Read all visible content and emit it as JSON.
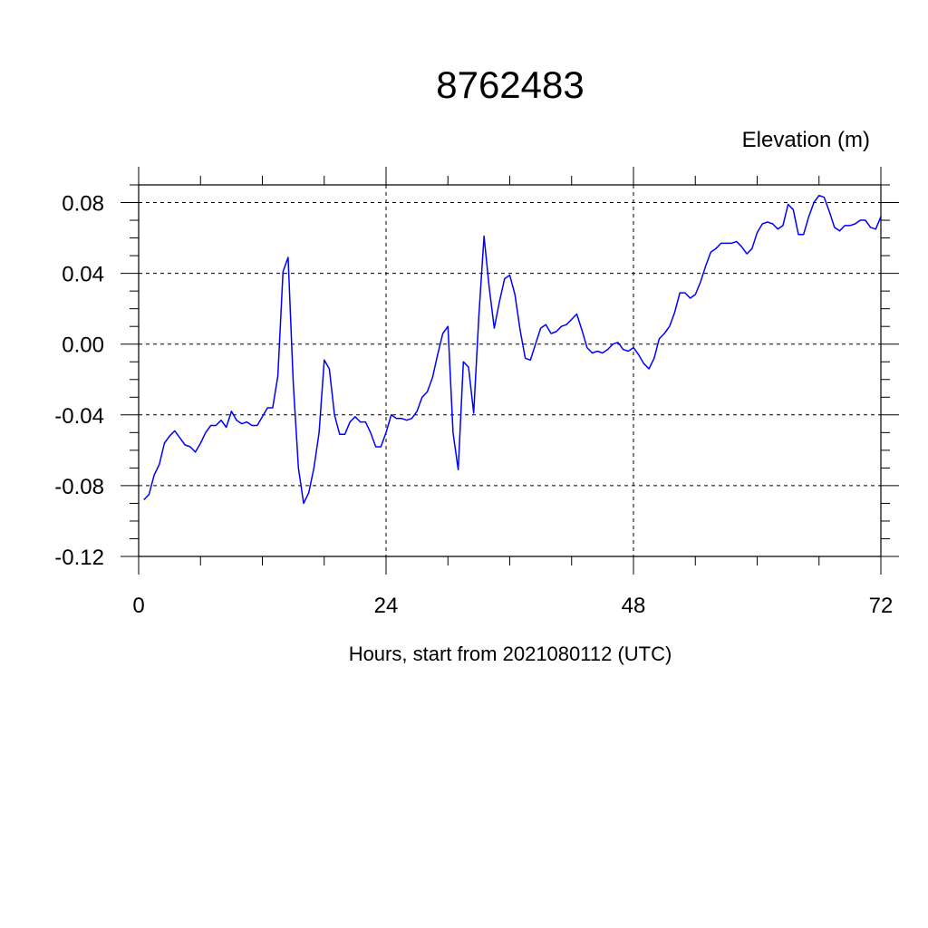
{
  "chart_data": {
    "type": "line",
    "title": "8762483",
    "ylabel": "Elevation (m)",
    "xlabel": "Hours, start from 2021080112 (UTC)",
    "xlim": [
      0,
      72
    ],
    "ylim": [
      -0.12,
      0.09
    ],
    "xticks": [
      0,
      24,
      48,
      72
    ],
    "xtick_labels": [
      "0",
      "24",
      "48",
      "72"
    ],
    "yticks": [
      -0.12,
      -0.08,
      -0.04,
      0.0,
      0.04,
      0.08
    ],
    "ytick_labels": [
      "-0.12",
      "-0.08",
      "-0.04",
      "0.00",
      "0.04",
      "0.08"
    ],
    "grid": true,
    "series": [
      {
        "color": "#0000ff",
        "x": [
          0.5,
          1.0,
          1.5,
          2.0,
          2.5,
          3.0,
          3.5,
          4.0,
          4.5,
          5.0,
          5.5,
          6.0,
          6.5,
          7.0,
          7.5,
          8.0,
          8.5,
          9.0,
          9.5,
          10.0,
          10.5,
          11.0,
          11.5,
          12.0,
          12.5,
          13.0,
          13.5,
          14.0,
          14.5,
          15.0,
          15.5,
          16.0,
          16.5,
          17.0,
          17.5,
          18.0,
          18.5,
          19.0,
          19.5,
          20.0,
          20.5,
          21.0,
          21.5,
          22.0,
          22.5,
          23.0,
          23.5,
          24.0,
          24.5,
          25.0,
          25.5,
          26.0,
          26.5,
          27.0,
          27.5,
          28.0,
          28.5,
          29.0,
          29.5,
          30.0,
          30.5,
          31.0,
          31.5,
          32.0,
          32.5,
          33.0,
          33.5,
          34.0,
          34.5,
          35.0,
          35.5,
          36.0,
          36.5,
          37.0,
          37.5,
          38.0,
          38.5,
          39.0,
          39.5,
          40.0,
          40.5,
          41.0,
          41.5,
          42.0,
          42.5,
          43.0,
          43.5,
          44.0,
          44.5,
          45.0,
          45.5,
          46.0,
          46.5,
          47.0,
          47.5,
          48.0,
          48.5,
          49.0,
          49.5,
          50.0,
          50.5,
          51.0,
          51.5,
          52.0,
          52.5,
          53.0,
          53.5,
          54.0,
          54.5,
          55.0,
          55.5,
          56.0,
          56.5,
          57.0,
          57.5,
          58.0,
          58.5,
          59.0,
          59.5,
          60.0,
          60.5,
          61.0,
          61.5,
          62.0,
          62.5,
          63.0,
          63.5,
          64.0,
          64.5,
          65.0,
          65.5,
          66.0,
          66.5,
          67.0,
          67.5,
          68.0,
          68.5,
          69.0,
          69.5,
          70.0,
          70.5,
          71.0,
          71.5,
          72.0
        ],
        "y": [
          -0.088,
          -0.085,
          -0.074,
          -0.068,
          -0.056,
          -0.052,
          -0.049,
          -0.053,
          -0.057,
          -0.058,
          -0.061,
          -0.056,
          -0.05,
          -0.046,
          -0.046,
          -0.043,
          -0.047,
          -0.038,
          -0.043,
          -0.045,
          -0.044,
          -0.046,
          -0.046,
          -0.041,
          -0.036,
          -0.036,
          -0.018,
          0.041,
          0.049,
          -0.022,
          -0.07,
          -0.09,
          -0.084,
          -0.07,
          -0.05,
          -0.009,
          -0.014,
          -0.04,
          -0.051,
          -0.051,
          -0.044,
          -0.041,
          -0.044,
          -0.044,
          -0.05,
          -0.058,
          -0.058,
          -0.05,
          -0.04,
          -0.042,
          -0.042,
          -0.043,
          -0.042,
          -0.038,
          -0.03,
          -0.027,
          -0.019,
          -0.006,
          0.006,
          0.01,
          -0.05,
          -0.071,
          -0.01,
          -0.013,
          -0.039,
          0.016,
          0.061,
          0.032,
          0.009,
          0.024,
          0.037,
          0.039,
          0.028,
          0.008,
          -0.008,
          -0.009,
          0.0,
          0.009,
          0.011,
          0.006,
          0.007,
          0.01,
          0.011,
          0.014,
          0.017,
          0.008,
          -0.002,
          -0.005,
          -0.004,
          -0.005,
          -0.003,
          0.0,
          0.001,
          -0.003,
          -0.004,
          -0.002,
          -0.006,
          -0.011,
          -0.014,
          -0.008,
          0.003,
          0.006,
          0.01,
          0.018,
          0.029,
          0.029,
          0.026,
          0.028,
          0.035,
          0.044,
          0.052,
          0.054,
          0.057,
          0.057,
          0.057,
          0.058,
          0.055,
          0.051,
          0.054,
          0.063,
          0.068,
          0.069,
          0.068,
          0.065,
          0.067,
          0.079,
          0.076,
          0.062,
          0.062,
          0.072,
          0.08,
          0.084,
          0.083,
          0.075,
          0.066,
          0.064,
          0.067,
          0.067,
          0.068,
          0.07,
          0.07,
          0.066,
          0.065,
          0.072
        ]
      }
    ]
  }
}
